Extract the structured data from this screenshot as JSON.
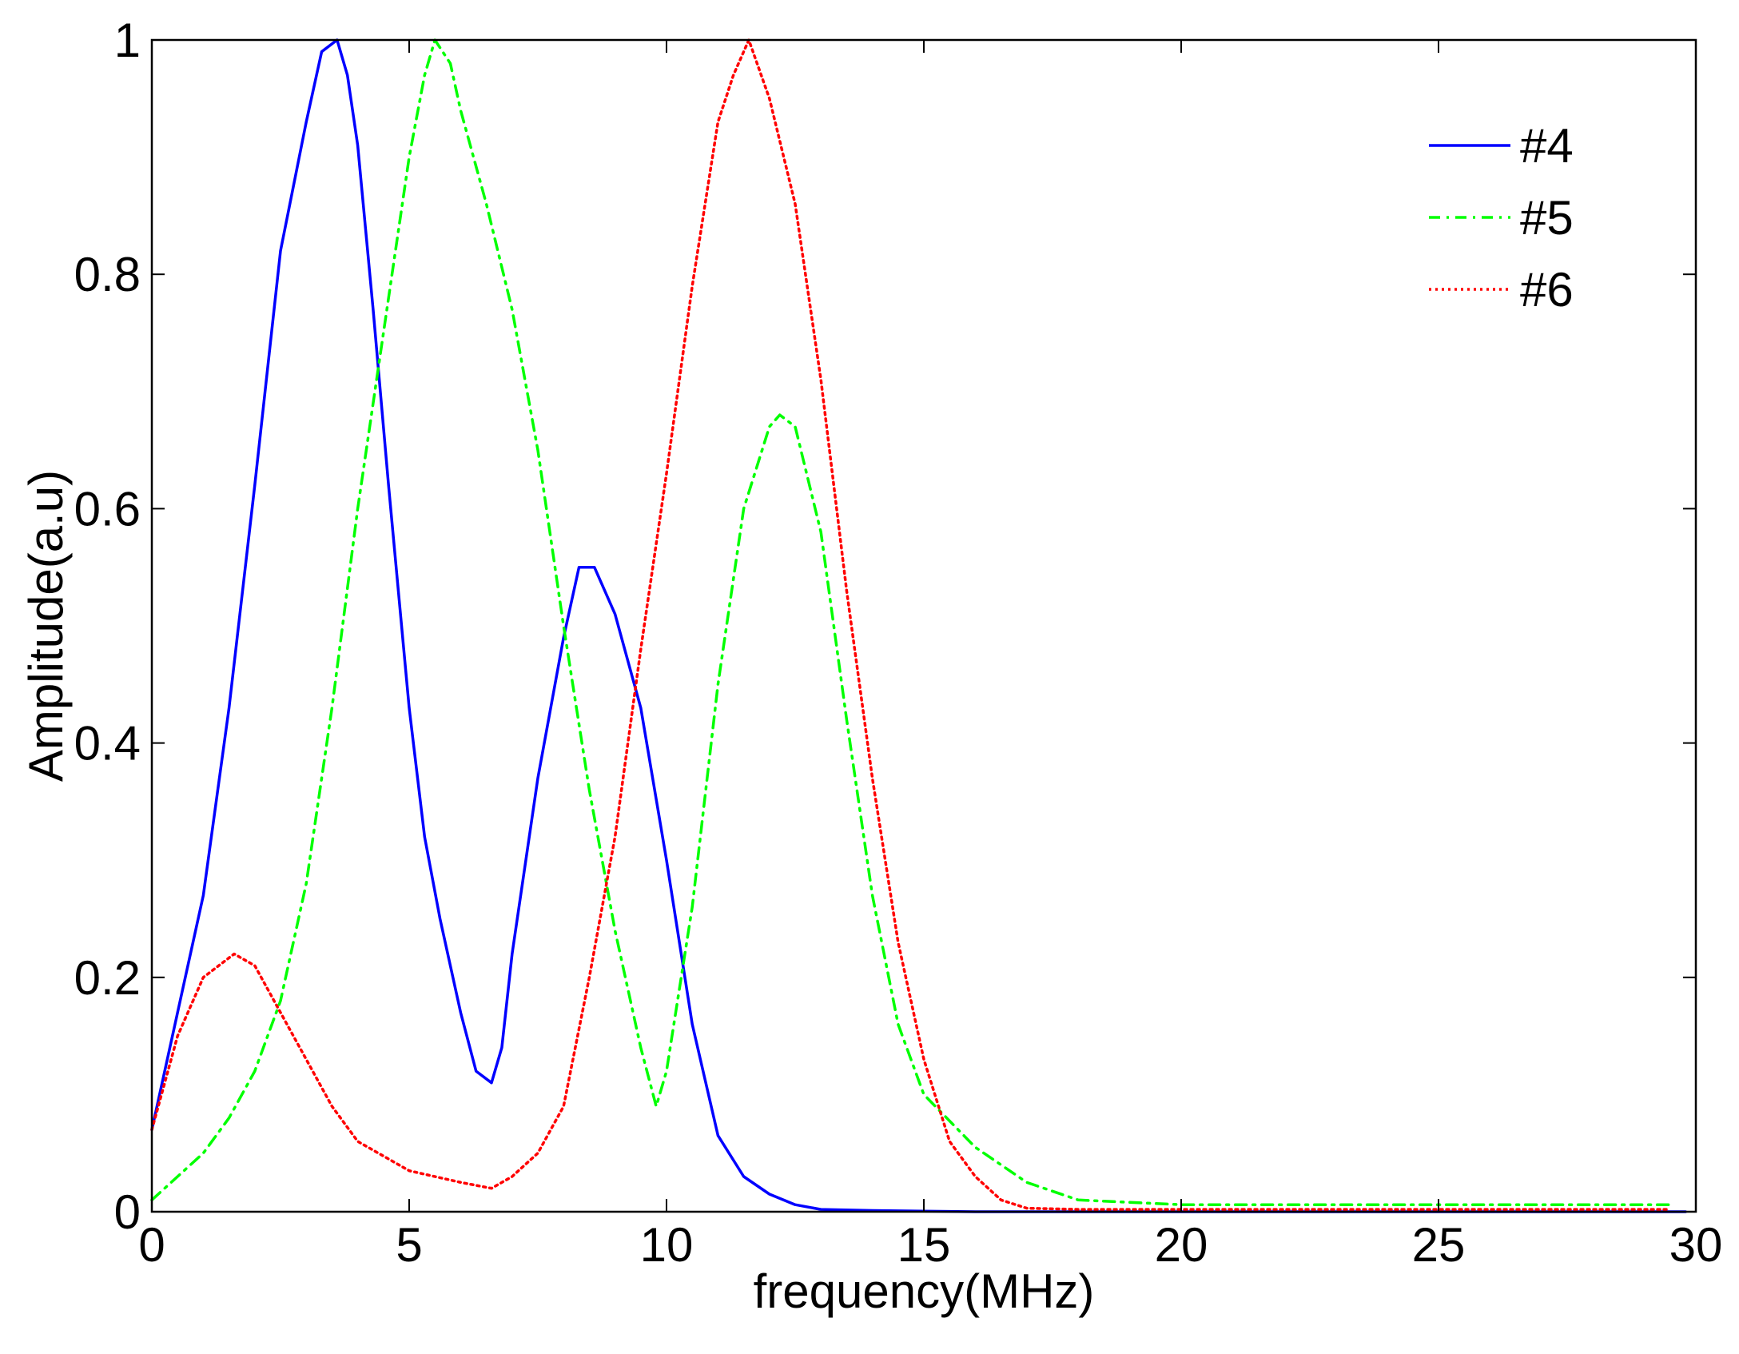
{
  "chart_data": {
    "type": "line",
    "title": "",
    "xlabel": "frequency(MHz)",
    "ylabel": "Amplitude(a.u)",
    "xlim": [
      0,
      30
    ],
    "ylim": [
      0,
      1
    ],
    "xticks": [
      0,
      5,
      10,
      15,
      20,
      25,
      30
    ],
    "xtick_labels": [
      "0",
      "5",
      "10",
      "15",
      "20",
      "25",
      "30"
    ],
    "yticks": [
      0,
      0.2,
      0.4,
      0.6,
      0.8,
      1
    ],
    "ytick_labels": [
      "0",
      "0.2",
      "0.4",
      "0.6",
      "0.8",
      "1"
    ],
    "grid": false,
    "legend": {
      "position": "top-right"
    },
    "series": [
      {
        "name": "#4",
        "color": "#0000ff",
        "style": "solid",
        "x": [
          0,
          0.5,
          1,
          1.5,
          2,
          2.5,
          3,
          3.3,
          3.6,
          3.8,
          4,
          4.3,
          4.6,
          5,
          5.3,
          5.6,
          6,
          6.3,
          6.6,
          6.8,
          7,
          7.5,
          8,
          8.3,
          8.6,
          9,
          9.5,
          10,
          10.5,
          11,
          11.5,
          12,
          12.5,
          13,
          14,
          16,
          18,
          20,
          25,
          29.8
        ],
        "y": [
          0.07,
          0.17,
          0.27,
          0.43,
          0.62,
          0.82,
          0.93,
          0.99,
          1.0,
          0.97,
          0.91,
          0.77,
          0.62,
          0.43,
          0.32,
          0.25,
          0.17,
          0.12,
          0.11,
          0.14,
          0.22,
          0.37,
          0.49,
          0.55,
          0.55,
          0.51,
          0.43,
          0.3,
          0.16,
          0.065,
          0.03,
          0.015,
          0.006,
          0.002,
          0.001,
          0.0,
          0.0,
          0.0,
          0.0,
          0.0
        ]
      },
      {
        "name": "#5",
        "color": "#00ff00",
        "style": "dashdot",
        "x": [
          0,
          0.5,
          1,
          1.5,
          2,
          2.5,
          3,
          3.5,
          4,
          4.5,
          5,
          5.3,
          5.5,
          5.8,
          6,
          6.5,
          7,
          7.5,
          8,
          8.5,
          9,
          9.5,
          9.8,
          10,
          10.5,
          11,
          11.5,
          12,
          12.2,
          12.5,
          13,
          13.5,
          14,
          14.5,
          15,
          16,
          17,
          18,
          20,
          25,
          29.5
        ],
        "y": [
          0.01,
          0.03,
          0.05,
          0.08,
          0.12,
          0.18,
          0.28,
          0.43,
          0.6,
          0.75,
          0.9,
          0.97,
          1.0,
          0.98,
          0.94,
          0.86,
          0.77,
          0.65,
          0.5,
          0.36,
          0.24,
          0.14,
          0.09,
          0.12,
          0.26,
          0.45,
          0.6,
          0.67,
          0.68,
          0.67,
          0.58,
          0.42,
          0.27,
          0.16,
          0.1,
          0.055,
          0.025,
          0.01,
          0.006,
          0.006,
          0.006
        ]
      },
      {
        "name": "#6",
        "color": "#ff0000",
        "style": "dotted",
        "x": [
          0,
          0.5,
          1,
          1.6,
          2,
          2.5,
          3,
          3.5,
          4,
          5,
          6,
          6.6,
          7,
          7.5,
          8,
          8.5,
          9,
          9.5,
          10,
          10.5,
          11,
          11.3,
          11.6,
          12,
          12.5,
          13,
          13.5,
          14,
          14.5,
          15,
          15.5,
          16,
          16.5,
          17,
          18,
          20,
          25,
          29.5
        ],
        "y": [
          0.07,
          0.15,
          0.2,
          0.22,
          0.21,
          0.17,
          0.13,
          0.09,
          0.06,
          0.035,
          0.025,
          0.02,
          0.03,
          0.05,
          0.09,
          0.2,
          0.32,
          0.48,
          0.63,
          0.79,
          0.93,
          0.97,
          1.0,
          0.95,
          0.86,
          0.71,
          0.53,
          0.37,
          0.23,
          0.13,
          0.06,
          0.03,
          0.01,
          0.003,
          0.002,
          0.002,
          0.002,
          0.002
        ]
      }
    ]
  }
}
